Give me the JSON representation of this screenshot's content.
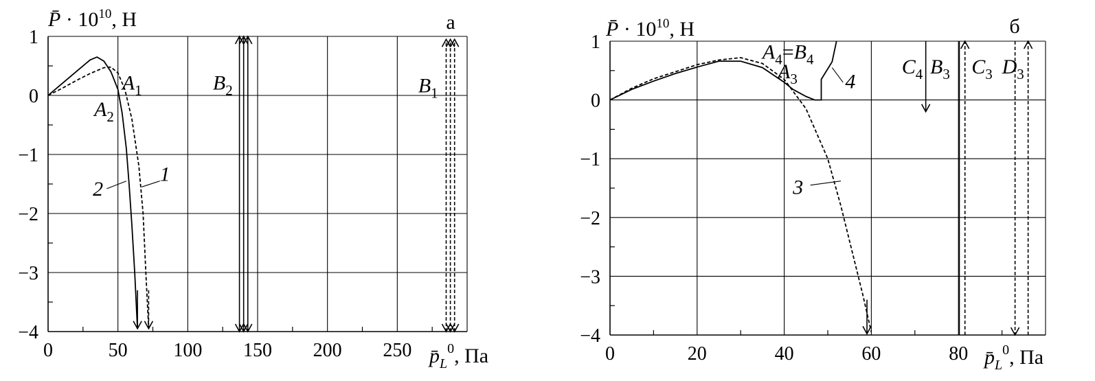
{
  "chart_data": [
    {
      "type": "line",
      "panel_letter": "а",
      "ylabel": {
        "sym": "P̄",
        "mid": " · 10",
        "sup": "10",
        "unit": ", Н"
      },
      "xlabel": {
        "sym": "p̄",
        "sub": "L",
        "sup": "0",
        "unit": ", Па"
      },
      "xlim": [
        0,
        300
      ],
      "ylim": [
        -4,
        1
      ],
      "xticks": [
        0,
        50,
        100,
        150,
        200,
        250
      ],
      "xtick_labels": [
        "0",
        "50",
        "100",
        "150",
        "200",
        "250"
      ],
      "yticks": [
        1,
        0,
        -1,
        -2,
        -3,
        -4
      ],
      "ytick_labels": [
        "1",
        "0",
        "−1",
        "−2",
        "−3",
        "−4"
      ],
      "x_gridlines": [
        50,
        100,
        150,
        200,
        250,
        300
      ],
      "y_gridlines": [
        1,
        0,
        -1,
        -2,
        -3,
        -4
      ],
      "series": [
        {
          "name": "1",
          "style": "dashed",
          "x": [
            0,
            10,
            20,
            30,
            40,
            45,
            50,
            55,
            60,
            65,
            68,
            70,
            72
          ],
          "y": [
            0,
            0.12,
            0.25,
            0.37,
            0.47,
            0.48,
            0.38,
            0.1,
            -0.4,
            -1.2,
            -2.0,
            -3.0,
            -3.95
          ]
        },
        {
          "name": "2",
          "style": "solid",
          "x": [
            0,
            10,
            20,
            30,
            35,
            40,
            45,
            50,
            53,
            56,
            58,
            60,
            62,
            64
          ],
          "y": [
            0,
            0.2,
            0.4,
            0.6,
            0.65,
            0.58,
            0.4,
            0.1,
            -0.3,
            -0.9,
            -1.5,
            -2.2,
            -3.0,
            -3.95
          ]
        }
      ],
      "arrows": [
        {
          "x": 137,
          "y1": -4,
          "y2": 1.0,
          "style": "solid",
          "dir": "both"
        },
        {
          "x": 140,
          "y1": -4,
          "y2": 1.0,
          "style": "solid",
          "dir": "both"
        },
        {
          "x": 143,
          "y1": -4,
          "y2": 1.0,
          "style": "solid",
          "dir": "both"
        },
        {
          "x": 285,
          "y1": -4,
          "y2": 0.95,
          "style": "dashed",
          "dir": "both"
        },
        {
          "x": 288,
          "y1": -4,
          "y2": 0.95,
          "style": "dashed",
          "dir": "both"
        },
        {
          "x": 291,
          "y1": -4,
          "y2": 0.95,
          "style": "dashed",
          "dir": "both"
        },
        {
          "x": 64,
          "y1": -3.3,
          "y2": -3.95,
          "style": "solid",
          "dir": "down"
        },
        {
          "x": 72,
          "y1": -3.3,
          "y2": -3.95,
          "style": "dashed",
          "dir": "down"
        }
      ],
      "annotations": [
        {
          "main": "A",
          "sub": "1",
          "italic": true,
          "x": 53,
          "y": 0.1
        },
        {
          "main": "A",
          "sub": "2",
          "italic": true,
          "x": 33,
          "y": -0.35
        },
        {
          "main": "B",
          "sub": "2",
          "italic": true,
          "x": 118,
          "y": 0.1
        },
        {
          "main": "B",
          "sub": "1",
          "italic": true,
          "x": 265,
          "y": 0.05
        },
        {
          "main": "1",
          "sub": "",
          "italic": true,
          "x": 80,
          "y": -1.45
        },
        {
          "main": "2",
          "sub": "",
          "italic": true,
          "x": 32,
          "y": -1.7
        }
      ],
      "leaders": [
        {
          "x1": 42,
          "y1": -1.58,
          "x2": 56,
          "y2": -1.45
        },
        {
          "x1": 80,
          "y1": -1.45,
          "x2": 67,
          "y2": -1.55
        }
      ]
    },
    {
      "type": "line",
      "panel_letter": "б",
      "ylabel": {
        "sym": "P̄",
        "mid": " · 10",
        "sup": "10",
        "unit": ", Н"
      },
      "xlabel": {
        "sym": "p̄",
        "sub": "L",
        "sup": "0",
        "unit": ", Па"
      },
      "xlim": [
        0,
        100
      ],
      "ylim": [
        -4,
        1
      ],
      "xticks": [
        0,
        20,
        40,
        60,
        80
      ],
      "xtick_labels": [
        "0",
        "20",
        "40",
        "60",
        "80"
      ],
      "yticks": [
        1,
        0,
        -1,
        -2,
        -3,
        -4
      ],
      "ytick_labels": [
        "1",
        "0",
        "−1",
        "−2",
        "−3",
        "−4"
      ],
      "x_gridlines": [
        20,
        40,
        60,
        80,
        100
      ],
      "y_gridlines": [
        1,
        0,
        -1,
        -2,
        -3,
        -4
      ],
      "series": [
        {
          "name": "3",
          "style": "dashed",
          "x": [
            0,
            5,
            10,
            15,
            20,
            25,
            30,
            35,
            40,
            45,
            50,
            53,
            56,
            58,
            60
          ],
          "y": [
            0,
            0.2,
            0.36,
            0.48,
            0.6,
            0.68,
            0.72,
            0.62,
            0.35,
            -0.15,
            -1.0,
            -1.8,
            -2.7,
            -3.3,
            -3.95
          ]
        },
        {
          "name": "4",
          "style": "solid",
          "x": [
            0,
            5,
            10,
            15,
            20,
            25,
            30,
            35,
            40,
            42,
            45,
            47,
            48.5,
            48.5,
            51,
            52
          ],
          "y": [
            0,
            0.18,
            0.32,
            0.45,
            0.56,
            0.66,
            0.66,
            0.55,
            0.3,
            0.18,
            0.06,
            0.0,
            0.0,
            0.35,
            0.65,
            1.0
          ]
        }
      ],
      "arrows": [
        {
          "x": 72.5,
          "y1": 1.0,
          "y2": -0.2,
          "style": "solid",
          "dir": "down"
        },
        {
          "x": 81.5,
          "y1": -4,
          "y2": 1.0,
          "style": "dashed",
          "dir": "up"
        },
        {
          "x": 93,
          "y1": 1.0,
          "y2": -4,
          "style": "dashed",
          "dir": "down"
        },
        {
          "x": 96,
          "y1": -4,
          "y2": 1.0,
          "style": "dashed",
          "dir": "up"
        },
        {
          "x": 59,
          "y1": -3.4,
          "y2": -3.98,
          "style": "solid",
          "dir": "down"
        }
      ],
      "solid_lines": [
        {
          "x": 80.2,
          "y1": -4,
          "y2": 1.0
        }
      ],
      "annotations": [
        {
          "main": "A",
          "sub": "4",
          "mid": "=",
          "main2": "B",
          "sub2": "4",
          "italic": true,
          "x": 35,
          "y": 0.7
        },
        {
          "main": "A",
          "sub": "3",
          "italic": true,
          "x": 38.5,
          "y": 0.37
        },
        {
          "main": "4",
          "sub": "",
          "italic": true,
          "x": 54,
          "y": 0.2
        },
        {
          "main": "C",
          "sub": "4",
          "italic": true,
          "x": 67,
          "y": 0.45
        },
        {
          "main": "B",
          "sub": "3",
          "italic": true,
          "x": 73.5,
          "y": 0.45
        },
        {
          "main": "C",
          "sub": "3",
          "italic": true,
          "x": 83,
          "y": 0.45
        },
        {
          "main": "D",
          "sub": "3",
          "italic": true,
          "x": 90,
          "y": 0.45
        },
        {
          "main": "3",
          "sub": "",
          "italic": true,
          "x": 42,
          "y": -1.6
        }
      ],
      "leaders": [
        {
          "x1": 46,
          "y1": -1.45,
          "x2": 53,
          "y2": -1.38
        },
        {
          "x1": 53.5,
          "y1": 0.3,
          "x2": 51,
          "y2": 0.55
        }
      ]
    }
  ]
}
